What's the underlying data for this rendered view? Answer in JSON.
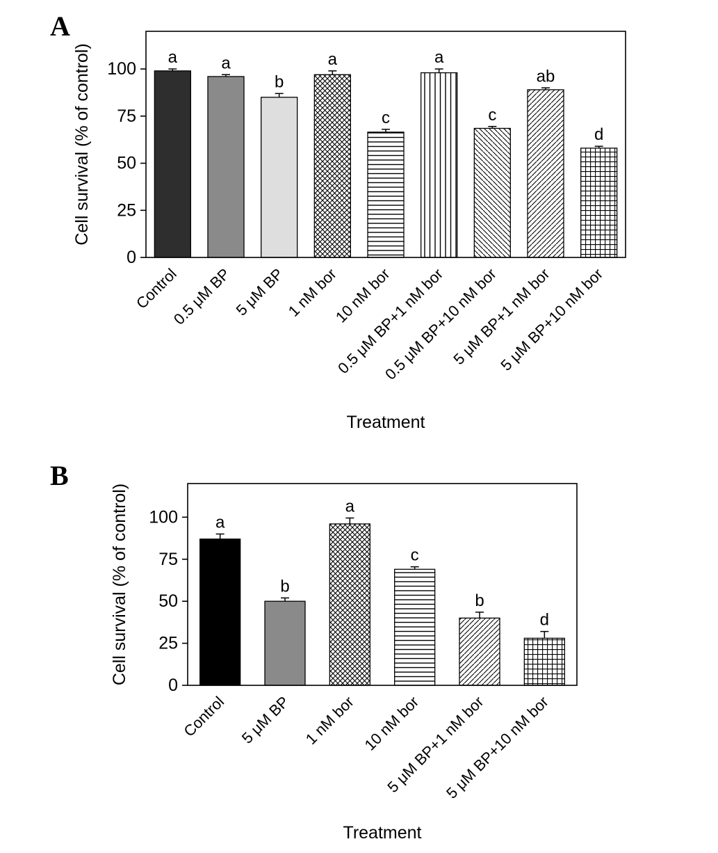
{
  "figure": {
    "panels": [
      {
        "label": "A"
      },
      {
        "label": "B"
      }
    ]
  },
  "chart_data": [
    {
      "type": "bar",
      "panel": "A",
      "title": "",
      "xlabel": "Treatment",
      "ylabel": "Cell survival (% of control)",
      "ylim": [
        0,
        120
      ],
      "yticks": [
        0,
        25,
        50,
        75,
        100
      ],
      "grid": false,
      "legend": "none",
      "categories": [
        "Control",
        "0.5 μM BP",
        "5 μM BP",
        "1 nM bor",
        "10 nM bor",
        "0.5 μM BP+1 nM bor",
        "0.5 μM BP+10 nM bor",
        "5 μM BP+1 nM bor",
        "5 μM BP+10 nM bor"
      ],
      "values": [
        99,
        96,
        85,
        97,
        66.5,
        98,
        68.5,
        89,
        58
      ],
      "errors": [
        1,
        1,
        2,
        2,
        1.5,
        2,
        1,
        1,
        1
      ],
      "sig_letters": [
        "a",
        "a",
        "b",
        "a",
        "c",
        "a",
        "c",
        "ab",
        "d"
      ],
      "bar_styles": [
        "#2e2e2e",
        "#8a8a8a",
        "#dedede",
        "crosshatch",
        "hlines",
        "vlines",
        "diag-left",
        "diag-right",
        "grid"
      ]
    },
    {
      "type": "bar",
      "panel": "B",
      "title": "",
      "xlabel": "Treatment",
      "ylabel": "Cell survival (% of control)",
      "ylim": [
        0,
        120
      ],
      "yticks": [
        0,
        25,
        50,
        75,
        100
      ],
      "grid": false,
      "legend": "none",
      "categories": [
        "Control",
        "5 μM BP",
        "1 nM bor",
        "10 nM bor",
        "5 μM BP+1 nM bor",
        "5 μM BP+10 nM bor"
      ],
      "values": [
        87,
        50,
        96,
        69,
        40,
        28
      ],
      "errors": [
        3,
        2,
        3.5,
        1.5,
        3.5,
        4
      ],
      "sig_letters": [
        "a",
        "b",
        "a",
        "c",
        "b",
        "d"
      ],
      "bar_styles": [
        "#000000",
        "#8a8a8a",
        "crosshatch",
        "hlines",
        "diag-right",
        "grid"
      ]
    }
  ]
}
